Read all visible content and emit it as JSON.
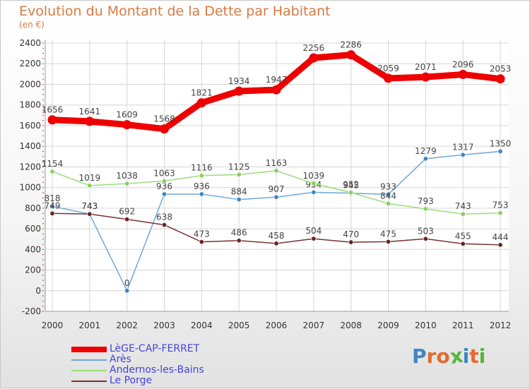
{
  "header": {
    "title": "Evolution du Montant de la Dette par Habitant",
    "unit": "(en €)"
  },
  "colors": {
    "title": "#d87a3f",
    "legend_text": "#4444dd",
    "axis_text": "#333333"
  },
  "chart_data": {
    "type": "line",
    "title": "Evolution du Montant de la Dette par Habitant",
    "subtitle": "(en €)",
    "xlabel": "",
    "ylabel": "",
    "x": [
      "2000",
      "2001",
      "2002",
      "2003",
      "2004",
      "2005",
      "2006",
      "2007",
      "2008",
      "2009",
      "2010",
      "2011",
      "2012"
    ],
    "ylim": [
      -200,
      2400
    ],
    "yticks": [
      -200,
      0,
      200,
      400,
      600,
      800,
      1000,
      1200,
      1400,
      1600,
      1800,
      2000,
      2200,
      2400
    ],
    "grid": true,
    "legend_position": "bottom-left",
    "series": [
      {
        "name": "LèGE-CAP-FERRET",
        "color": "#ee0000",
        "marker": "#ee0000",
        "width": "thick",
        "values": [
          1656,
          1641,
          1609,
          1568,
          1821,
          1934,
          1947,
          2256,
          2286,
          2059,
          2071,
          2096,
          2053
        ]
      },
      {
        "name": "Arès",
        "color": "#6fa8d6",
        "marker": "#3f86c4",
        "width": "thin",
        "values": [
          818,
          743,
          0,
          936,
          936,
          884,
          907,
          954,
          945,
          933,
          1279,
          1317,
          1350
        ]
      },
      {
        "name": "Andernos-les-Bains",
        "color": "#99dd77",
        "marker": "#88d060",
        "width": "thin",
        "values": [
          1154,
          1019,
          1038,
          1063,
          1116,
          1125,
          1163,
          1039,
          952,
          844,
          793,
          743,
          753
        ]
      },
      {
        "name": "Le Porge",
        "color": "#773333",
        "marker": "#6a2424",
        "width": "thin",
        "values": [
          749,
          743,
          692,
          638,
          473,
          486,
          458,
          504,
          470,
          475,
          503,
          455,
          444
        ]
      }
    ]
  },
  "logo": {
    "text": "Proxiti",
    "letter_colors": [
      "#3f86c4",
      "#e36c2f",
      "#e36c2f",
      "#56b43d",
      "#3f86c4",
      "#e36c2f",
      "#56b43d"
    ]
  }
}
